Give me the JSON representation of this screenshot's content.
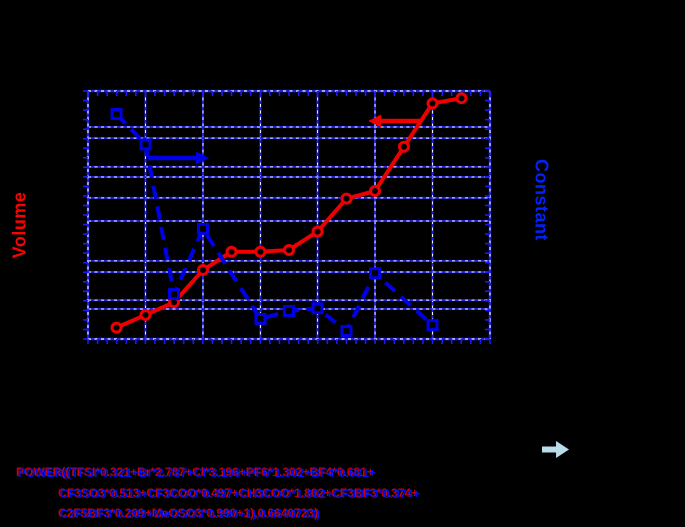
{
  "figure": {
    "background_color": "#000000",
    "left_axis_label": "Volume",
    "right_axis_label": "Constant",
    "left_label_color": "#ff0000",
    "right_label_color": "#0022ff",
    "formula_color": "#0011ee",
    "block_arrow_color": "#b9dde8"
  },
  "formula": {
    "lines": [
      "POWER((TFSI*0.321+Br*2.787+Cl*3.196+PF6*1.302+BF4*0.681+",
      "CF3SO3*0.513+CF3COO*0.497+CH3COO*1.802+CF3BF3*0.374+",
      "C2F5BF3*0.209+MeOSO3*0.990+1),0.6640723)"
    ]
  },
  "chart_data": {
    "type": "line",
    "title": "",
    "xlabel": "",
    "ylabel_left": "Volume",
    "ylabel_right": "Constant",
    "tick_labels_visible": false,
    "x_unit": "fraction_of_plot_width",
    "y_unit": "fraction_of_plot_height_from_bottom",
    "style": {
      "grid": true,
      "grid_color": "#2222dd",
      "grid_overlay_color": "#eef2ff",
      "axis_color": "#1a1aff",
      "plot_background": "#000000"
    },
    "layout": {
      "v_gridlines": [
        0.143,
        0.286,
        0.429,
        0.571,
        0.714,
        0.857
      ],
      "h_gridlines": [
        0.855,
        0.81,
        0.694,
        0.653,
        0.569,
        0.476,
        0.315,
        0.27,
        0.157,
        0.121
      ]
    },
    "series": [
      {
        "name": "Volume",
        "axis": "left",
        "color": "#ee0000",
        "marker": "circle",
        "line_style": "solid",
        "points": [
          [
            0.071,
            0.046
          ],
          [
            0.143,
            0.097
          ],
          [
            0.214,
            0.148
          ],
          [
            0.286,
            0.278
          ],
          [
            0.357,
            0.352
          ],
          [
            0.429,
            0.352
          ],
          [
            0.5,
            0.359
          ],
          [
            0.571,
            0.433
          ],
          [
            0.643,
            0.566
          ],
          [
            0.714,
            0.597
          ],
          [
            0.786,
            0.775
          ],
          [
            0.857,
            0.95
          ],
          [
            0.929,
            0.971
          ]
        ]
      },
      {
        "name": "Constant",
        "axis": "right",
        "color": "#0000e6",
        "marker": "square",
        "line_style": "dashed",
        "points": [
          [
            0.071,
            0.907
          ],
          [
            0.143,
            0.785
          ],
          [
            0.214,
            0.181
          ],
          [
            0.286,
            0.444
          ],
          [
            0.429,
            0.081
          ],
          [
            0.5,
            0.113
          ],
          [
            0.571,
            0.124
          ],
          [
            0.643,
            0.032
          ],
          [
            0.714,
            0.265
          ],
          [
            0.857,
            0.056
          ]
        ]
      }
    ],
    "annotations": [
      {
        "type": "arrow",
        "color": "#ee0000",
        "direction": "left",
        "x1": 0.828,
        "y1": 0.879,
        "x2": 0.697,
        "y2": 0.879
      },
      {
        "type": "arrow",
        "color": "#0000e6",
        "direction": "right",
        "x1": 0.149,
        "y1": 0.73,
        "x2": 0.301,
        "y2": 0.73
      },
      {
        "type": "block-arrow",
        "color": "#b9dde8",
        "direction": "right"
      }
    ]
  }
}
